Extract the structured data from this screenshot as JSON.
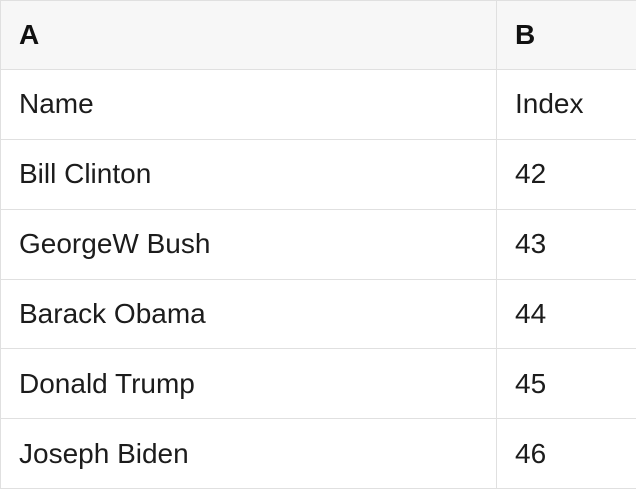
{
  "table": {
    "columns": [
      {
        "id": "A",
        "label": "A"
      },
      {
        "id": "B",
        "label": "B"
      }
    ],
    "rows": [
      {
        "a": "Name",
        "b": "Index"
      },
      {
        "a": "Bill Clinton",
        "b": "42"
      },
      {
        "a": "GeorgeW Bush",
        "b": "43"
      },
      {
        "a": "Barack Obama",
        "b": "44"
      },
      {
        "a": "Donald Trump",
        "b": "45"
      },
      {
        "a": "Joseph Biden",
        "b": "46"
      }
    ]
  },
  "colors": {
    "header_bg": "#f7f7f7",
    "grid_border": "#e0e0e0",
    "text": "#1c1c1c",
    "row_bg": "#ffffff"
  }
}
